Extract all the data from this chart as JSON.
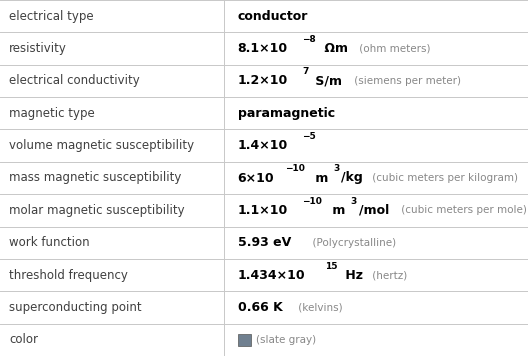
{
  "rows": [
    {
      "label": "electrical type",
      "segments": [
        {
          "text": "conductor",
          "bold": true,
          "super": false,
          "main": true
        }
      ],
      "extra": ""
    },
    {
      "label": "resistivity",
      "segments": [
        {
          "text": "8.1×10",
          "bold": true,
          "super": false,
          "main": true
        },
        {
          "text": "−8",
          "bold": true,
          "super": true,
          "main": true
        },
        {
          "text": " Ωm",
          "bold": true,
          "super": false,
          "main": true
        }
      ],
      "extra": " (ohm meters)"
    },
    {
      "label": "electrical conductivity",
      "segments": [
        {
          "text": "1.2×10",
          "bold": true,
          "super": false,
          "main": true
        },
        {
          "text": "7",
          "bold": true,
          "super": true,
          "main": true
        },
        {
          "text": " S/m",
          "bold": true,
          "super": false,
          "main": true
        }
      ],
      "extra": " (siemens per meter)"
    },
    {
      "label": "magnetic type",
      "segments": [
        {
          "text": "paramagnetic",
          "bold": true,
          "super": false,
          "main": true
        }
      ],
      "extra": ""
    },
    {
      "label": "volume magnetic susceptibility",
      "segments": [
        {
          "text": "1.4×10",
          "bold": true,
          "super": false,
          "main": true
        },
        {
          "text": "−5",
          "bold": true,
          "super": true,
          "main": true
        }
      ],
      "extra": ""
    },
    {
      "label": "mass magnetic susceptibility",
      "segments": [
        {
          "text": "6×10",
          "bold": true,
          "super": false,
          "main": true
        },
        {
          "text": "−10",
          "bold": true,
          "super": true,
          "main": true
        },
        {
          "text": " m",
          "bold": true,
          "super": false,
          "main": true
        },
        {
          "text": "3",
          "bold": true,
          "super": true,
          "main": true
        },
        {
          "text": "/kg",
          "bold": true,
          "super": false,
          "main": true
        }
      ],
      "extra": " (cubic meters per kilogram)"
    },
    {
      "label": "molar magnetic susceptibility",
      "segments": [
        {
          "text": "1.1×10",
          "bold": true,
          "super": false,
          "main": true
        },
        {
          "text": "−10",
          "bold": true,
          "super": true,
          "main": true
        },
        {
          "text": " m",
          "bold": true,
          "super": false,
          "main": true
        },
        {
          "text": "3",
          "bold": true,
          "super": true,
          "main": true
        },
        {
          "text": "/mol",
          "bold": true,
          "super": false,
          "main": true
        }
      ],
      "extra": " (cubic meters per mole)"
    },
    {
      "label": "work function",
      "segments": [
        {
          "text": "5.93 eV",
          "bold": true,
          "super": false,
          "main": true
        }
      ],
      "extra": "  (Polycrystalline)"
    },
    {
      "label": "threshold frequency",
      "segments": [
        {
          "text": "1.434×10",
          "bold": true,
          "super": false,
          "main": true
        },
        {
          "text": "15",
          "bold": true,
          "super": true,
          "main": true
        },
        {
          "text": " Hz",
          "bold": true,
          "super": false,
          "main": true
        }
      ],
      "extra": " (hertz)"
    },
    {
      "label": "superconducting point",
      "segments": [
        {
          "text": "0.66 K",
          "bold": true,
          "super": false,
          "main": true
        }
      ],
      "extra": " (kelvins)"
    },
    {
      "label": "color",
      "segments": [],
      "extra": " (slate gray)",
      "color_swatch": "#708090"
    }
  ],
  "col_split": 0.425,
  "background_color": "#ffffff",
  "grid_color": "#c8c8c8",
  "label_color": "#404040",
  "value_color": "#000000",
  "extra_color": "#888888",
  "main_fontsize": 9,
  "super_fontsize": 6.5,
  "label_fontsize": 8.5,
  "extra_fontsize": 7.5
}
